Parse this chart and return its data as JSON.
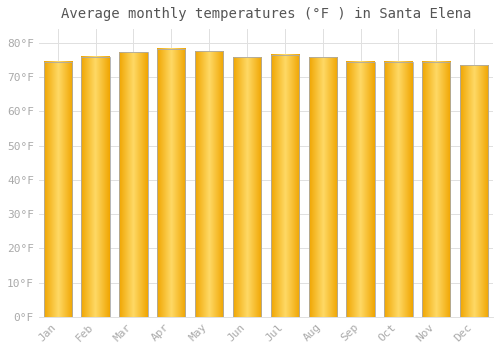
{
  "title": "Average monthly temperatures (°F ) in Santa Elena",
  "categories": [
    "Jan",
    "Feb",
    "Mar",
    "Apr",
    "May",
    "Jun",
    "Jul",
    "Aug",
    "Sep",
    "Oct",
    "Nov",
    "Dec"
  ],
  "values": [
    74.5,
    75.9,
    77.2,
    78.3,
    77.5,
    75.7,
    76.5,
    75.7,
    74.5,
    74.5,
    74.5,
    73.4
  ],
  "bar_color_center": "#FFD966",
  "bar_color_edge": "#F0A500",
  "bar_edge_color": "#AAAAAA",
  "background_color": "#FFFFFF",
  "plot_bg_color": "#FFFFFF",
  "grid_color": "#E0E0E0",
  "tick_label_color": "#AAAAAA",
  "title_color": "#555555",
  "ylim": [
    0,
    84
  ],
  "yticks": [
    0,
    10,
    20,
    30,
    40,
    50,
    60,
    70,
    80
  ],
  "ytick_labels": [
    "0°F",
    "10°F",
    "20°F",
    "30°F",
    "40°F",
    "50°F",
    "60°F",
    "70°F",
    "80°F"
  ],
  "title_fontsize": 10,
  "tick_fontsize": 8,
  "bar_width": 0.75
}
